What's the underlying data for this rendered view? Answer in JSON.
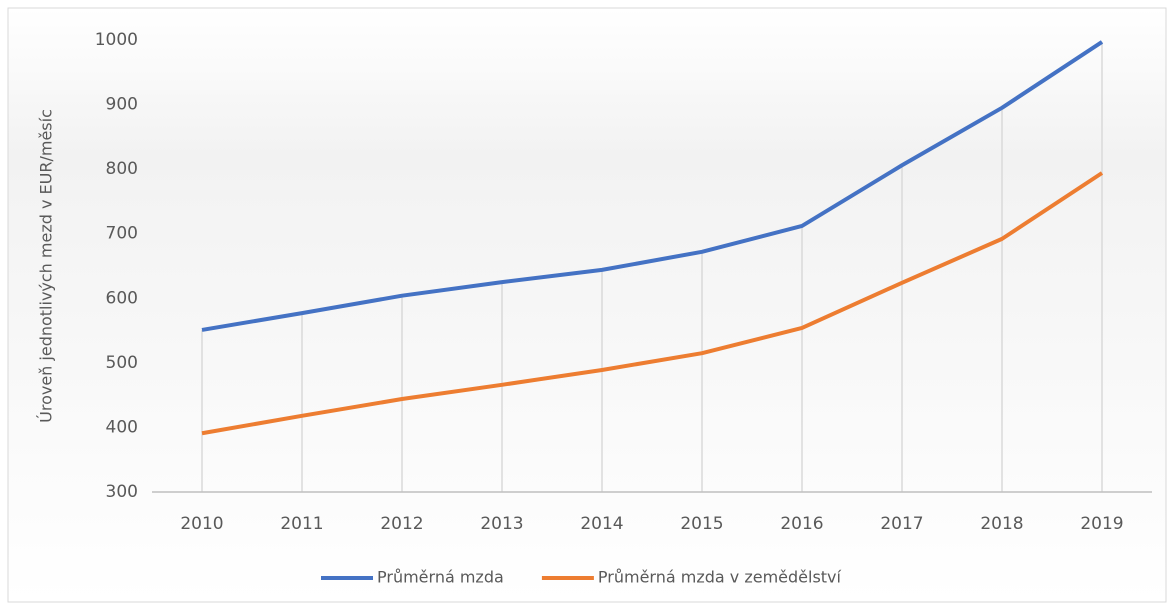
{
  "chart_data": {
    "type": "line",
    "y_label": "Úroveň jednotlivých mezd v EUR/měsíc",
    "categories": [
      "2010",
      "2011",
      "2012",
      "2013",
      "2014",
      "2015",
      "2016",
      "2017",
      "2018",
      "2019"
    ],
    "series": [
      {
        "name": "Průměrná mzda",
        "color": "#4472c4",
        "values": [
          551,
          577,
          604,
          625,
          644,
          672,
          712,
          806,
          895,
          997
        ]
      },
      {
        "name": "Průměrná mzda v zemědělství",
        "color": "#ed7d31",
        "values": [
          391,
          418,
          444,
          466,
          489,
          515,
          554,
          624,
          692,
          794
        ]
      }
    ],
    "ylim": [
      300,
      1000
    ],
    "yticks": [
      300,
      400,
      500,
      600,
      700,
      800,
      900,
      1000
    ],
    "legend": "bottom"
  }
}
